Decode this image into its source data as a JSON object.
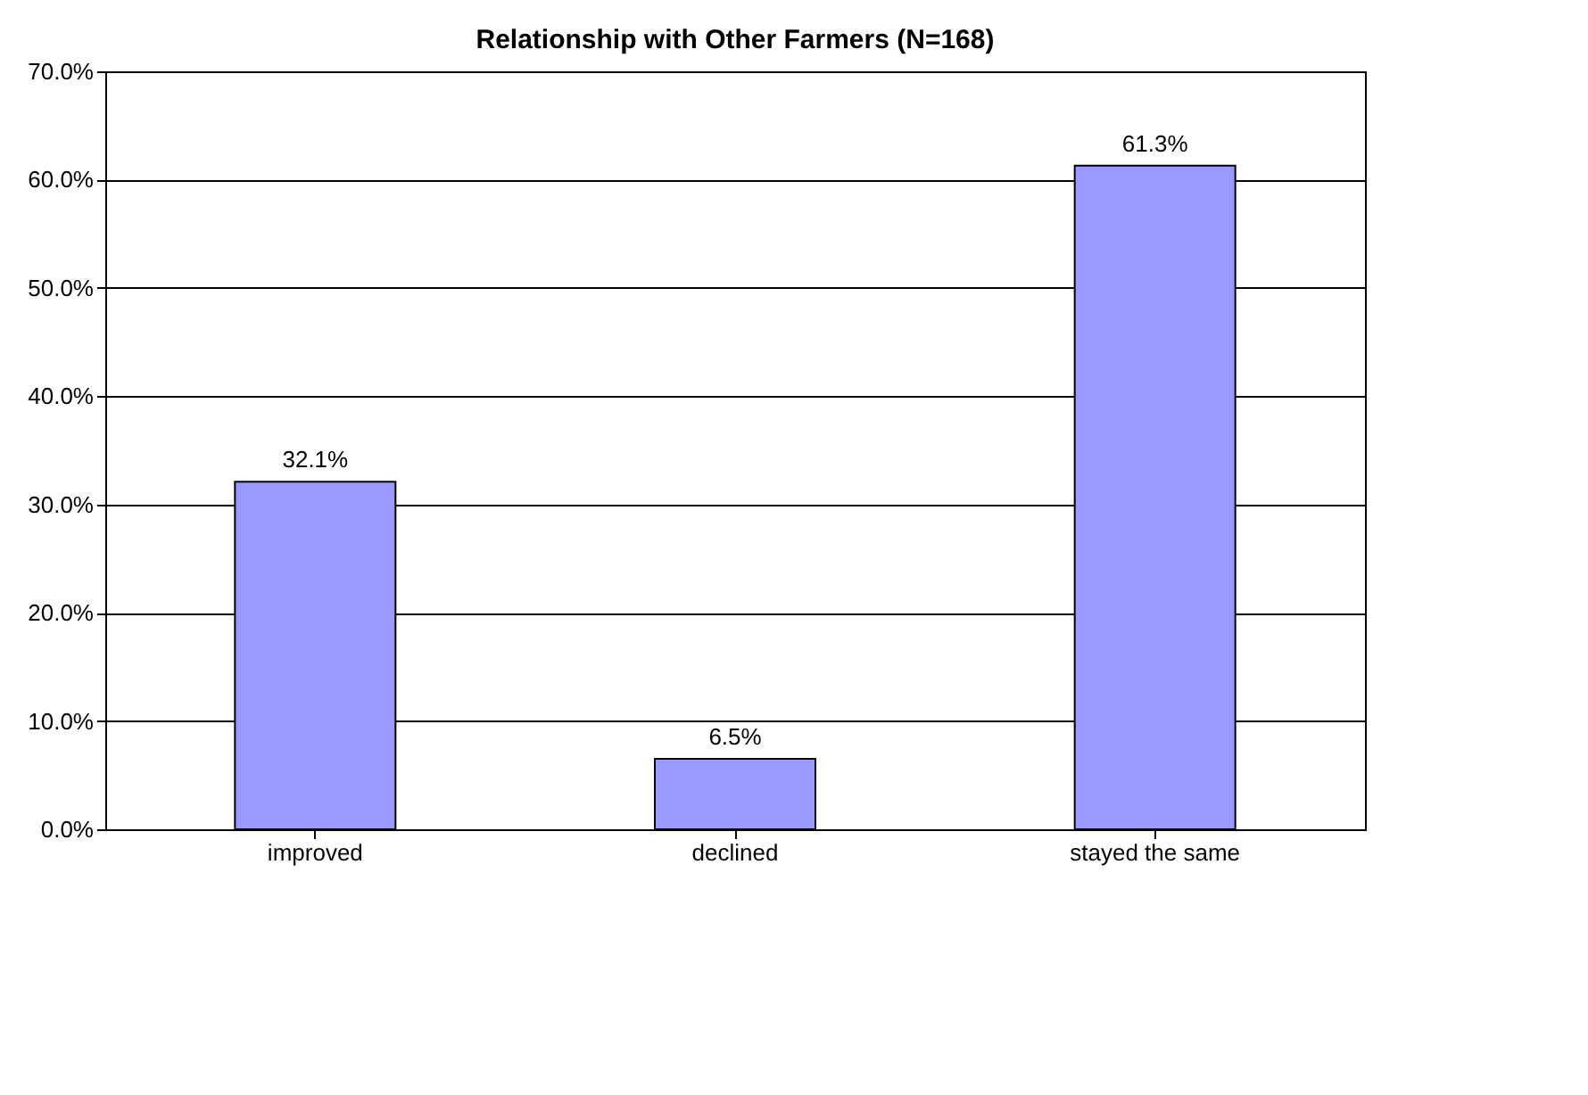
{
  "chart_data": {
    "type": "bar",
    "title": "Relationship with Other Farmers (N=168)",
    "categories": [
      "improved",
      "declined",
      "stayed the same"
    ],
    "values": [
      32.1,
      6.5,
      61.3
    ],
    "value_labels": [
      "32.1%",
      "6.5%",
      "61.3%"
    ],
    "color": "#9999ff",
    "ylim": [
      0,
      70
    ],
    "yticks": [
      {
        "value": 0,
        "label": "0.0%"
      },
      {
        "value": 10,
        "label": "10.0%"
      },
      {
        "value": 20,
        "label": "20.0%"
      },
      {
        "value": 30,
        "label": "30.0%"
      },
      {
        "value": 40,
        "label": "40.0%"
      },
      {
        "value": 50,
        "label": "50.0%"
      },
      {
        "value": 60,
        "label": "60.0%"
      },
      {
        "value": 70,
        "label": "70.0%"
      }
    ],
    "grid": "y"
  }
}
